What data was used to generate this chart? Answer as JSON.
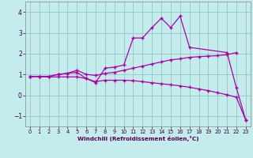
{
  "xlabel": "Windchill (Refroidissement éolien,°C)",
  "bg_color": "#c5eced",
  "grid_color": "#99cccc",
  "line_color": "#aa00aa",
  "xlim": [
    -0.5,
    23.5
  ],
  "ylim": [
    -1.5,
    4.5
  ],
  "xticks": [
    0,
    1,
    2,
    3,
    4,
    5,
    6,
    7,
    8,
    9,
    10,
    11,
    12,
    13,
    14,
    15,
    16,
    17,
    18,
    19,
    20,
    21,
    22,
    23
  ],
  "yticks": [
    -1,
    0,
    1,
    2,
    3,
    4
  ],
  "series": [
    {
      "x": [
        0,
        1,
        2,
        3,
        4,
        5,
        6,
        7,
        8,
        9,
        10,
        11,
        12,
        13,
        14,
        15,
        16,
        17,
        18,
        19,
        20,
        21,
        22,
        23
      ],
      "y": [
        0.9,
        0.9,
        0.9,
        1.0,
        1.05,
        1.1,
        0.8,
        0.6,
        1.3,
        1.35,
        1.45,
        2.75,
        2.75,
        3.25,
        3.7,
        3.25,
        3.8,
        2.3,
        null,
        null,
        null,
        2.05,
        0.35,
        -1.2
      ]
    },
    {
      "x": [
        0,
        1,
        2,
        3,
        4,
        5,
        6,
        7,
        8,
        9,
        10,
        11,
        12,
        13,
        14,
        15,
        16,
        17,
        18,
        19,
        20,
        21,
        22
      ],
      "y": [
        0.9,
        0.9,
        0.9,
        1.0,
        1.05,
        1.2,
        1.0,
        0.95,
        1.05,
        1.1,
        1.2,
        1.3,
        1.4,
        1.5,
        1.6,
        1.7,
        1.75,
        1.82,
        1.85,
        1.88,
        1.9,
        1.95,
        2.05
      ]
    },
    {
      "x": [
        0,
        1,
        2,
        3,
        4,
        5,
        6,
        7,
        8,
        9,
        10,
        11,
        12,
        13,
        14,
        15,
        16,
        17,
        18,
        19,
        20,
        21,
        22,
        23
      ],
      "y": [
        0.9,
        0.9,
        0.88,
        0.88,
        0.88,
        0.88,
        0.8,
        0.65,
        0.72,
        0.72,
        0.72,
        0.7,
        0.65,
        0.6,
        0.55,
        0.5,
        0.45,
        0.38,
        0.3,
        0.22,
        0.12,
        0.02,
        -0.1,
        -1.2
      ]
    }
  ]
}
